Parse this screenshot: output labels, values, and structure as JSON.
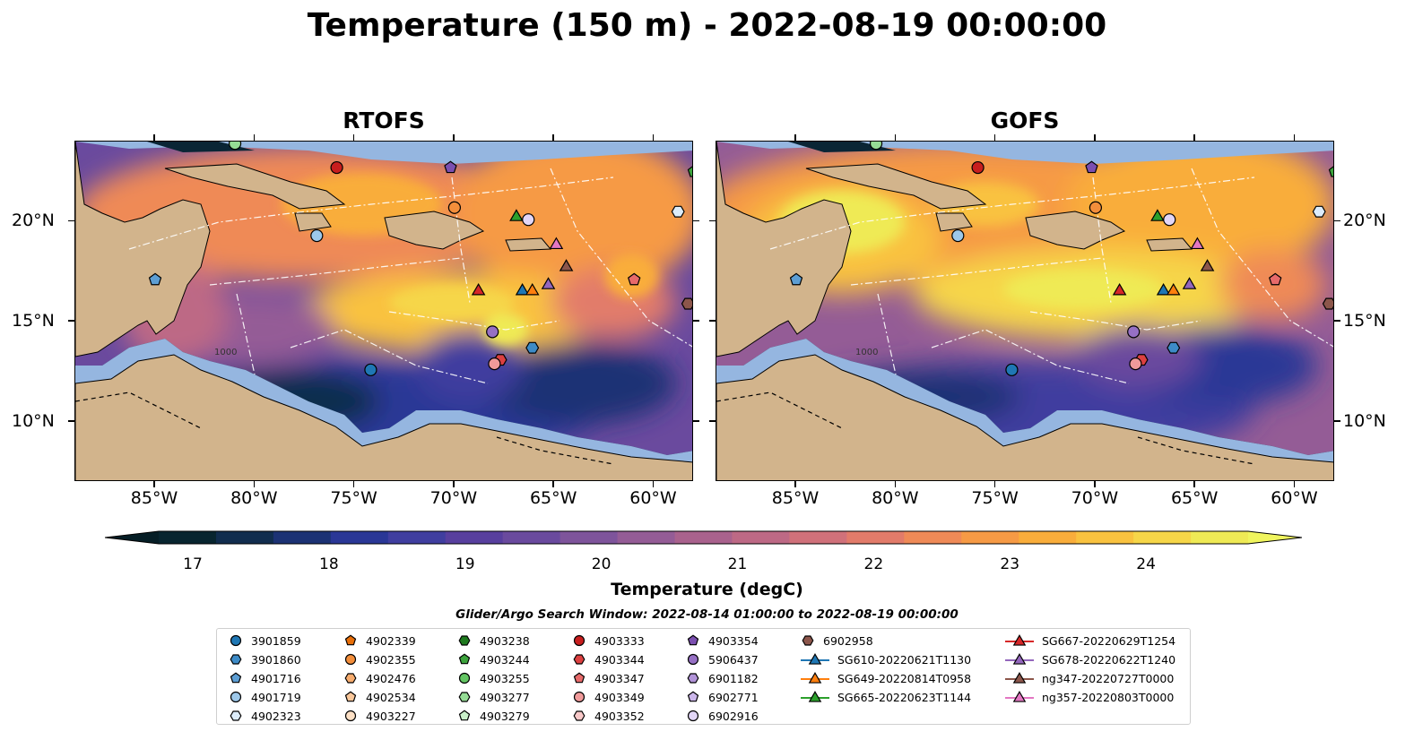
{
  "title": "Temperature (150 m) - 2022-08-19 00:00:00",
  "panels": [
    {
      "title": "RTOFS",
      "variant": "rtofs"
    },
    {
      "title": "GOFS",
      "variant": "gofs"
    }
  ],
  "map": {
    "lon_range": [
      -89,
      -58
    ],
    "lat_range": [
      7,
      24
    ],
    "xticks": [
      "85°W",
      "80°W",
      "75°W",
      "70°W",
      "65°W",
      "60°W"
    ],
    "xtick_values": [
      -85,
      -80,
      -75,
      -70,
      -65,
      -60
    ],
    "yticks": [
      "20°N",
      "15°N",
      "10°N"
    ],
    "ytick_values": [
      20,
      15,
      10
    ],
    "land_color": "#d2b48c",
    "shelf_color": "#95b6e0",
    "zone_line_color": "#ffffff",
    "contour_label": "1000"
  },
  "colorbar": {
    "ticks": [
      "17",
      "18",
      "19",
      "20",
      "21",
      "22",
      "23",
      "24"
    ],
    "tick_values": [
      17,
      18,
      19,
      20,
      21,
      22,
      23,
      24
    ],
    "range": [
      16.75,
      24.75
    ],
    "colors": [
      "#08252f",
      "#112d4e",
      "#1c3274",
      "#2a3796",
      "#403e9f",
      "#583f9e",
      "#6a4a9e",
      "#7e549b",
      "#945c96",
      "#a9628d",
      "#bd6985",
      "#d0717a",
      "#e27b6a",
      "#ef8a57",
      "#f69a45",
      "#f9ad3b",
      "#f9c23f",
      "#f6d648",
      "#efea55"
    ],
    "extend_low_color": "#061e26",
    "extend_high_color": "#f0f55e",
    "label": "Temperature (degC)"
  },
  "search_window": "Glider/Argo Search Window: 2022-08-14 01:00:00 to 2022-08-19 00:00:00",
  "legend": {
    "columns": [
      [
        {
          "label": "3901859",
          "marker": "circle",
          "color": "#1f77b4"
        },
        {
          "label": "3901860",
          "marker": "hexagon",
          "color": "#3d8bc7"
        },
        {
          "label": "4901716",
          "marker": "pentagon",
          "color": "#5d9ed4"
        },
        {
          "label": "4901719",
          "marker": "circle",
          "color": "#9dc8ea"
        },
        {
          "label": "4902323",
          "marker": "hexagon",
          "color": "#dcecfa"
        }
      ],
      [
        {
          "label": "4902339",
          "marker": "pentagon",
          "color": "#e86f09"
        },
        {
          "label": "4902355",
          "marker": "circle",
          "color": "#f38e3b"
        },
        {
          "label": "4902476",
          "marker": "hexagon",
          "color": "#f7ac6e"
        },
        {
          "label": "4902534",
          "marker": "pentagon",
          "color": "#fac79a"
        },
        {
          "label": "4903227",
          "marker": "circle",
          "color": "#fde0c5"
        }
      ],
      [
        {
          "label": "4903238",
          "marker": "hexagon",
          "color": "#1e7a1e"
        },
        {
          "label": "4903244",
          "marker": "pentagon",
          "color": "#3ca33c"
        },
        {
          "label": "4903255",
          "marker": "circle",
          "color": "#63c563"
        },
        {
          "label": "4903277",
          "marker": "hexagon",
          "color": "#95dc95"
        },
        {
          "label": "4903279",
          "marker": "pentagon",
          "color": "#c9f0c9"
        }
      ],
      [
        {
          "label": "4903333",
          "marker": "circle",
          "color": "#c81e1e"
        },
        {
          "label": "4903344",
          "marker": "hexagon",
          "color": "#dc4040"
        },
        {
          "label": "4903347",
          "marker": "pentagon",
          "color": "#e76a6a"
        },
        {
          "label": "4903349",
          "marker": "circle",
          "color": "#f09a9a"
        },
        {
          "label": "4903352",
          "marker": "hexagon",
          "color": "#f8c8c8"
        }
      ],
      [
        {
          "label": "4903354",
          "marker": "pentagon",
          "color": "#7b4fb0"
        },
        {
          "label": "5906437",
          "marker": "circle",
          "color": "#9670c4"
        },
        {
          "label": "6901182",
          "marker": "hexagon",
          "color": "#b193d8"
        },
        {
          "label": "6902771",
          "marker": "pentagon",
          "color": "#cbb6ea"
        },
        {
          "label": "6902916",
          "marker": "circle",
          "color": "#e2d6f7"
        }
      ],
      [
        {
          "label": "6902958",
          "marker": "hexagon",
          "color": "#8c564b"
        },
        {
          "label": "SG610-20220621T1130",
          "marker": "triangle-line",
          "color": "#1f77b4"
        },
        {
          "label": "SG649-20220814T0958",
          "marker": "triangle-line",
          "color": "#ff7f0e"
        },
        {
          "label": "SG665-20220623T1144",
          "marker": "triangle-line",
          "color": "#2ca02c"
        }
      ],
      [
        {
          "label": "SG667-20220629T1254",
          "marker": "triangle-line",
          "color": "#d62728"
        },
        {
          "label": "SG678-20220622T1240",
          "marker": "triangle-line",
          "color": "#9467bd"
        },
        {
          "label": "ng347-20220727T0000",
          "marker": "triangle-line",
          "color": "#8c564b"
        },
        {
          "label": "ng357-20220803T0000",
          "marker": "triangle-line",
          "color": "#e377c2"
        }
      ]
    ]
  },
  "platforms": [
    {
      "lon": -81.0,
      "lat": 23.9,
      "marker": "circle",
      "color": "#95dc95"
    },
    {
      "lon": -75.9,
      "lat": 22.7,
      "marker": "circle",
      "color": "#c81e1e"
    },
    {
      "lon": -70.2,
      "lat": 22.7,
      "marker": "pentagon",
      "color": "#7b4fb0"
    },
    {
      "lon": -58.0,
      "lat": 22.5,
      "marker": "pentagon",
      "color": "#3ca33c"
    },
    {
      "lon": -70.0,
      "lat": 20.7,
      "marker": "circle",
      "color": "#f38e3b"
    },
    {
      "lon": -58.8,
      "lat": 20.5,
      "marker": "hexagon",
      "color": "#dcecfa"
    },
    {
      "lon": -66.9,
      "lat": 20.3,
      "marker": "triangle",
      "color": "#2ca02c"
    },
    {
      "lon": -66.3,
      "lat": 20.1,
      "marker": "circle",
      "color": "#e2d6f7"
    },
    {
      "lon": -76.9,
      "lat": 19.3,
      "marker": "circle",
      "color": "#9dc8ea"
    },
    {
      "lon": -64.9,
      "lat": 18.9,
      "marker": "triangle",
      "color": "#e377c2"
    },
    {
      "lon": -64.4,
      "lat": 17.8,
      "marker": "triangle",
      "color": "#8c564b"
    },
    {
      "lon": -85.0,
      "lat": 17.1,
      "marker": "pentagon",
      "color": "#5d9ed4"
    },
    {
      "lon": -61.0,
      "lat": 17.1,
      "marker": "pentagon",
      "color": "#e76a6a"
    },
    {
      "lon": -65.3,
      "lat": 16.9,
      "marker": "triangle",
      "color": "#9467bd"
    },
    {
      "lon": -68.8,
      "lat": 16.6,
      "marker": "triangle",
      "color": "#d62728"
    },
    {
      "lon": -66.6,
      "lat": 16.6,
      "marker": "triangle",
      "color": "#1f77b4"
    },
    {
      "lon": -66.1,
      "lat": 16.6,
      "marker": "triangle",
      "color": "#ff7f0e"
    },
    {
      "lon": -58.3,
      "lat": 15.9,
      "marker": "hexagon",
      "color": "#8c564b"
    },
    {
      "lon": -68.1,
      "lat": 14.5,
      "marker": "circle",
      "color": "#9670c4"
    },
    {
      "lon": -66.1,
      "lat": 13.7,
      "marker": "hexagon",
      "color": "#3d8bc7"
    },
    {
      "lon": -67.7,
      "lat": 13.1,
      "marker": "hexagon",
      "color": "#dc4040"
    },
    {
      "lon": -68.0,
      "lat": 12.9,
      "marker": "circle",
      "color": "#f09a9a"
    },
    {
      "lon": -74.2,
      "lat": 12.6,
      "marker": "circle",
      "color": "#1f77b4"
    }
  ]
}
